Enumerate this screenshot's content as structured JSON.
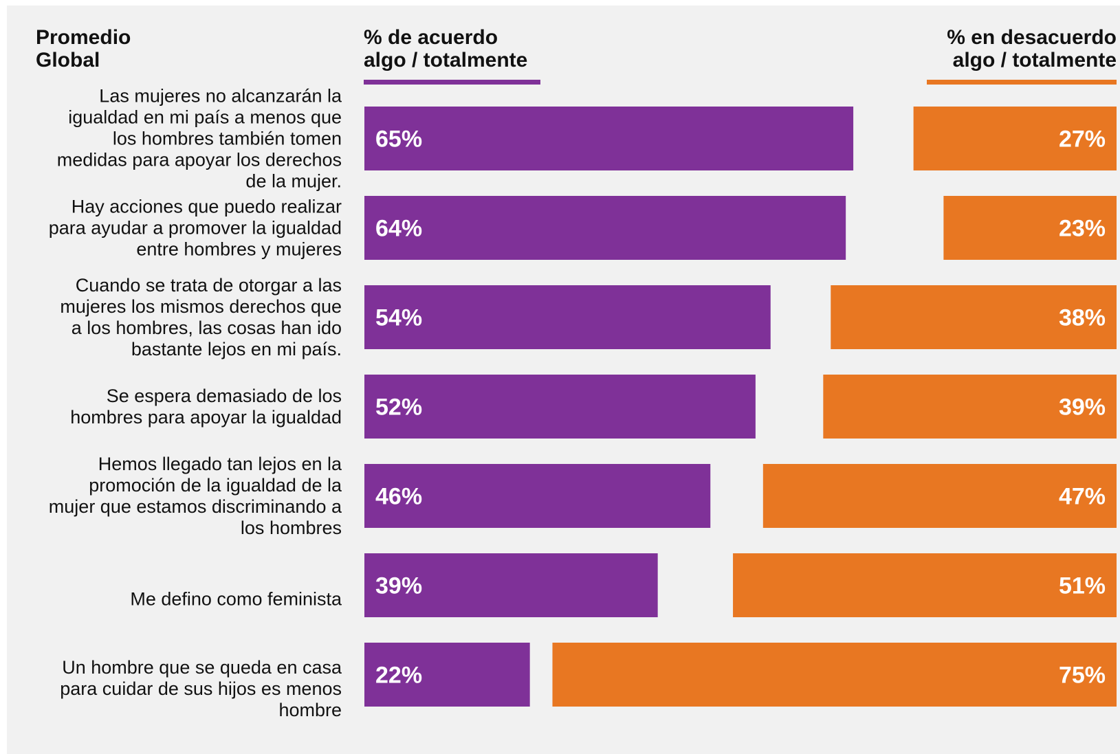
{
  "headers": {
    "title": "Promedio\nGlobal",
    "agree": "% de acuerdo\nalgo / totalmente",
    "disagree": "% en desacuerdo\nalgo / totalmente"
  },
  "colors": {
    "agree": "#7f3198",
    "disagree": "#e87722",
    "label_text": "#111111",
    "value_text": "#ffffff",
    "background": "#f1f1f1"
  },
  "chart_data": {
    "type": "bar",
    "orientation": "horizontal",
    "stacked_diverging": true,
    "categories": [
      "Las mujeres no alcanzarán la igualdad en mi país a menos que los hombres también tomen medidas para apoyar los derechos de la mujer.",
      "Hay acciones que puedo realizar para ayudar a promover la igualdad entre hombres y mujeres",
      "Cuando se trata de otorgar a las mujeres los mismos derechos que a los hombres, las cosas han ido bastante lejos en mi país.",
      "Se espera demasiado de los hombres para apoyar la igualdad",
      "Hemos llegado tan lejos en la promoción de la igualdad de la mujer que estamos discriminando a los hombres",
      "Me defino como feminista",
      "Un hombre que se queda en casa para cuidar de sus hijos es menos hombre"
    ],
    "category_lines": [
      [
        "Las mujeres no alcanzarán la",
        "igualdad en mi país a menos que",
        "los hombres también tomen",
        "medidas para apoyar los derechos",
        "de la mujer."
      ],
      [
        "Hay acciones que puedo realizar",
        "para ayudar a promover la igualdad",
        "entre hombres y mujeres"
      ],
      [
        "Cuando se trata de otorgar a las",
        "mujeres los mismos derechos que",
        "a los hombres, las cosas han ido",
        "bastante lejos en mi país."
      ],
      [
        "Se espera demasiado de los",
        "hombres para apoyar la igualdad"
      ],
      [
        "Hemos llegado tan lejos en la",
        "promoción de la igualdad de la",
        "mujer que estamos discriminando a",
        "los hombres"
      ],
      [
        "Me defino como feminista"
      ],
      [
        "Un hombre que se queda en casa",
        "para cuidar de sus hijos es menos",
        "hombre"
      ]
    ],
    "series": [
      {
        "name": "% de acuerdo algo / totalmente",
        "values": [
          65,
          64,
          54,
          52,
          46,
          39,
          22
        ],
        "labels": [
          "65%",
          "64%",
          "54%",
          "52%",
          "46%",
          "39%",
          "22%"
        ]
      },
      {
        "name": "% en desacuerdo algo / totalmente",
        "values": [
          27,
          23,
          38,
          39,
          47,
          51,
          75
        ],
        "labels": [
          "27%",
          "23%",
          "38%",
          "39%",
          "47%",
          "51%",
          "75%"
        ]
      }
    ],
    "xlim": [
      0,
      100
    ],
    "grid": false,
    "legend": "top"
  }
}
